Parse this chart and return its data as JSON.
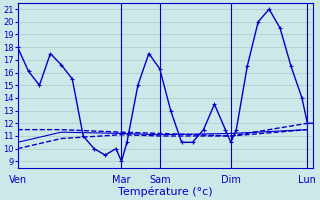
{
  "background_color": "#cce8e8",
  "grid_color": "#aacccc",
  "line_color": "#0000cc",
  "xlabel": "Température (°c)",
  "xlabel_fontsize": 8,
  "yticks": [
    9,
    10,
    11,
    12,
    13,
    14,
    15,
    16,
    17,
    18,
    19,
    20,
    21
  ],
  "ylim": [
    8.5,
    21.5
  ],
  "xlim": [
    0,
    27
  ],
  "day_labels": [
    "Ven",
    "Mar",
    "Sam",
    "Dim",
    "Lun"
  ],
  "day_positions": [
    0,
    9.5,
    13,
    19.5,
    26.5
  ],
  "series": [
    {
      "x": [
        0,
        1,
        2,
        3,
        4,
        5,
        6,
        7,
        8,
        9,
        9.5,
        10,
        11,
        12,
        13,
        14,
        15,
        16,
        17,
        18,
        19,
        19.5,
        20,
        21,
        22,
        23,
        24,
        25,
        26,
        26.5,
        27
      ],
      "y": [
        18,
        16.1,
        15,
        17.5,
        16.6,
        15.5,
        11,
        10,
        9.5,
        10,
        9,
        10.5,
        15,
        17.5,
        16.3,
        13,
        10.5,
        10.5,
        11.5,
        13.5,
        11.5,
        10.5,
        11.5,
        16.5,
        20,
        21,
        19.5,
        16.5,
        14,
        12,
        12
      ],
      "linestyle": "-",
      "linewidth": 1.0,
      "marker": true
    },
    {
      "x": [
        0,
        4,
        9.5,
        13,
        19.5,
        26.5
      ],
      "y": [
        11.5,
        11.5,
        11.3,
        11.2,
        11.0,
        12.0
      ],
      "linestyle": "--",
      "linewidth": 1.0,
      "marker": false
    },
    {
      "x": [
        0,
        4,
        9.5,
        13,
        19.5,
        26.5
      ],
      "y": [
        10.0,
        10.8,
        11.1,
        11.0,
        11.0,
        11.5
      ],
      "linestyle": "--",
      "linewidth": 1.0,
      "marker": false
    },
    {
      "x": [
        0,
        4,
        9.5,
        13,
        19.5,
        26.5
      ],
      "y": [
        10.5,
        11.3,
        11.2,
        11.1,
        11.2,
        11.5
      ],
      "linestyle": "-",
      "linewidth": 0.8,
      "marker": false
    }
  ]
}
